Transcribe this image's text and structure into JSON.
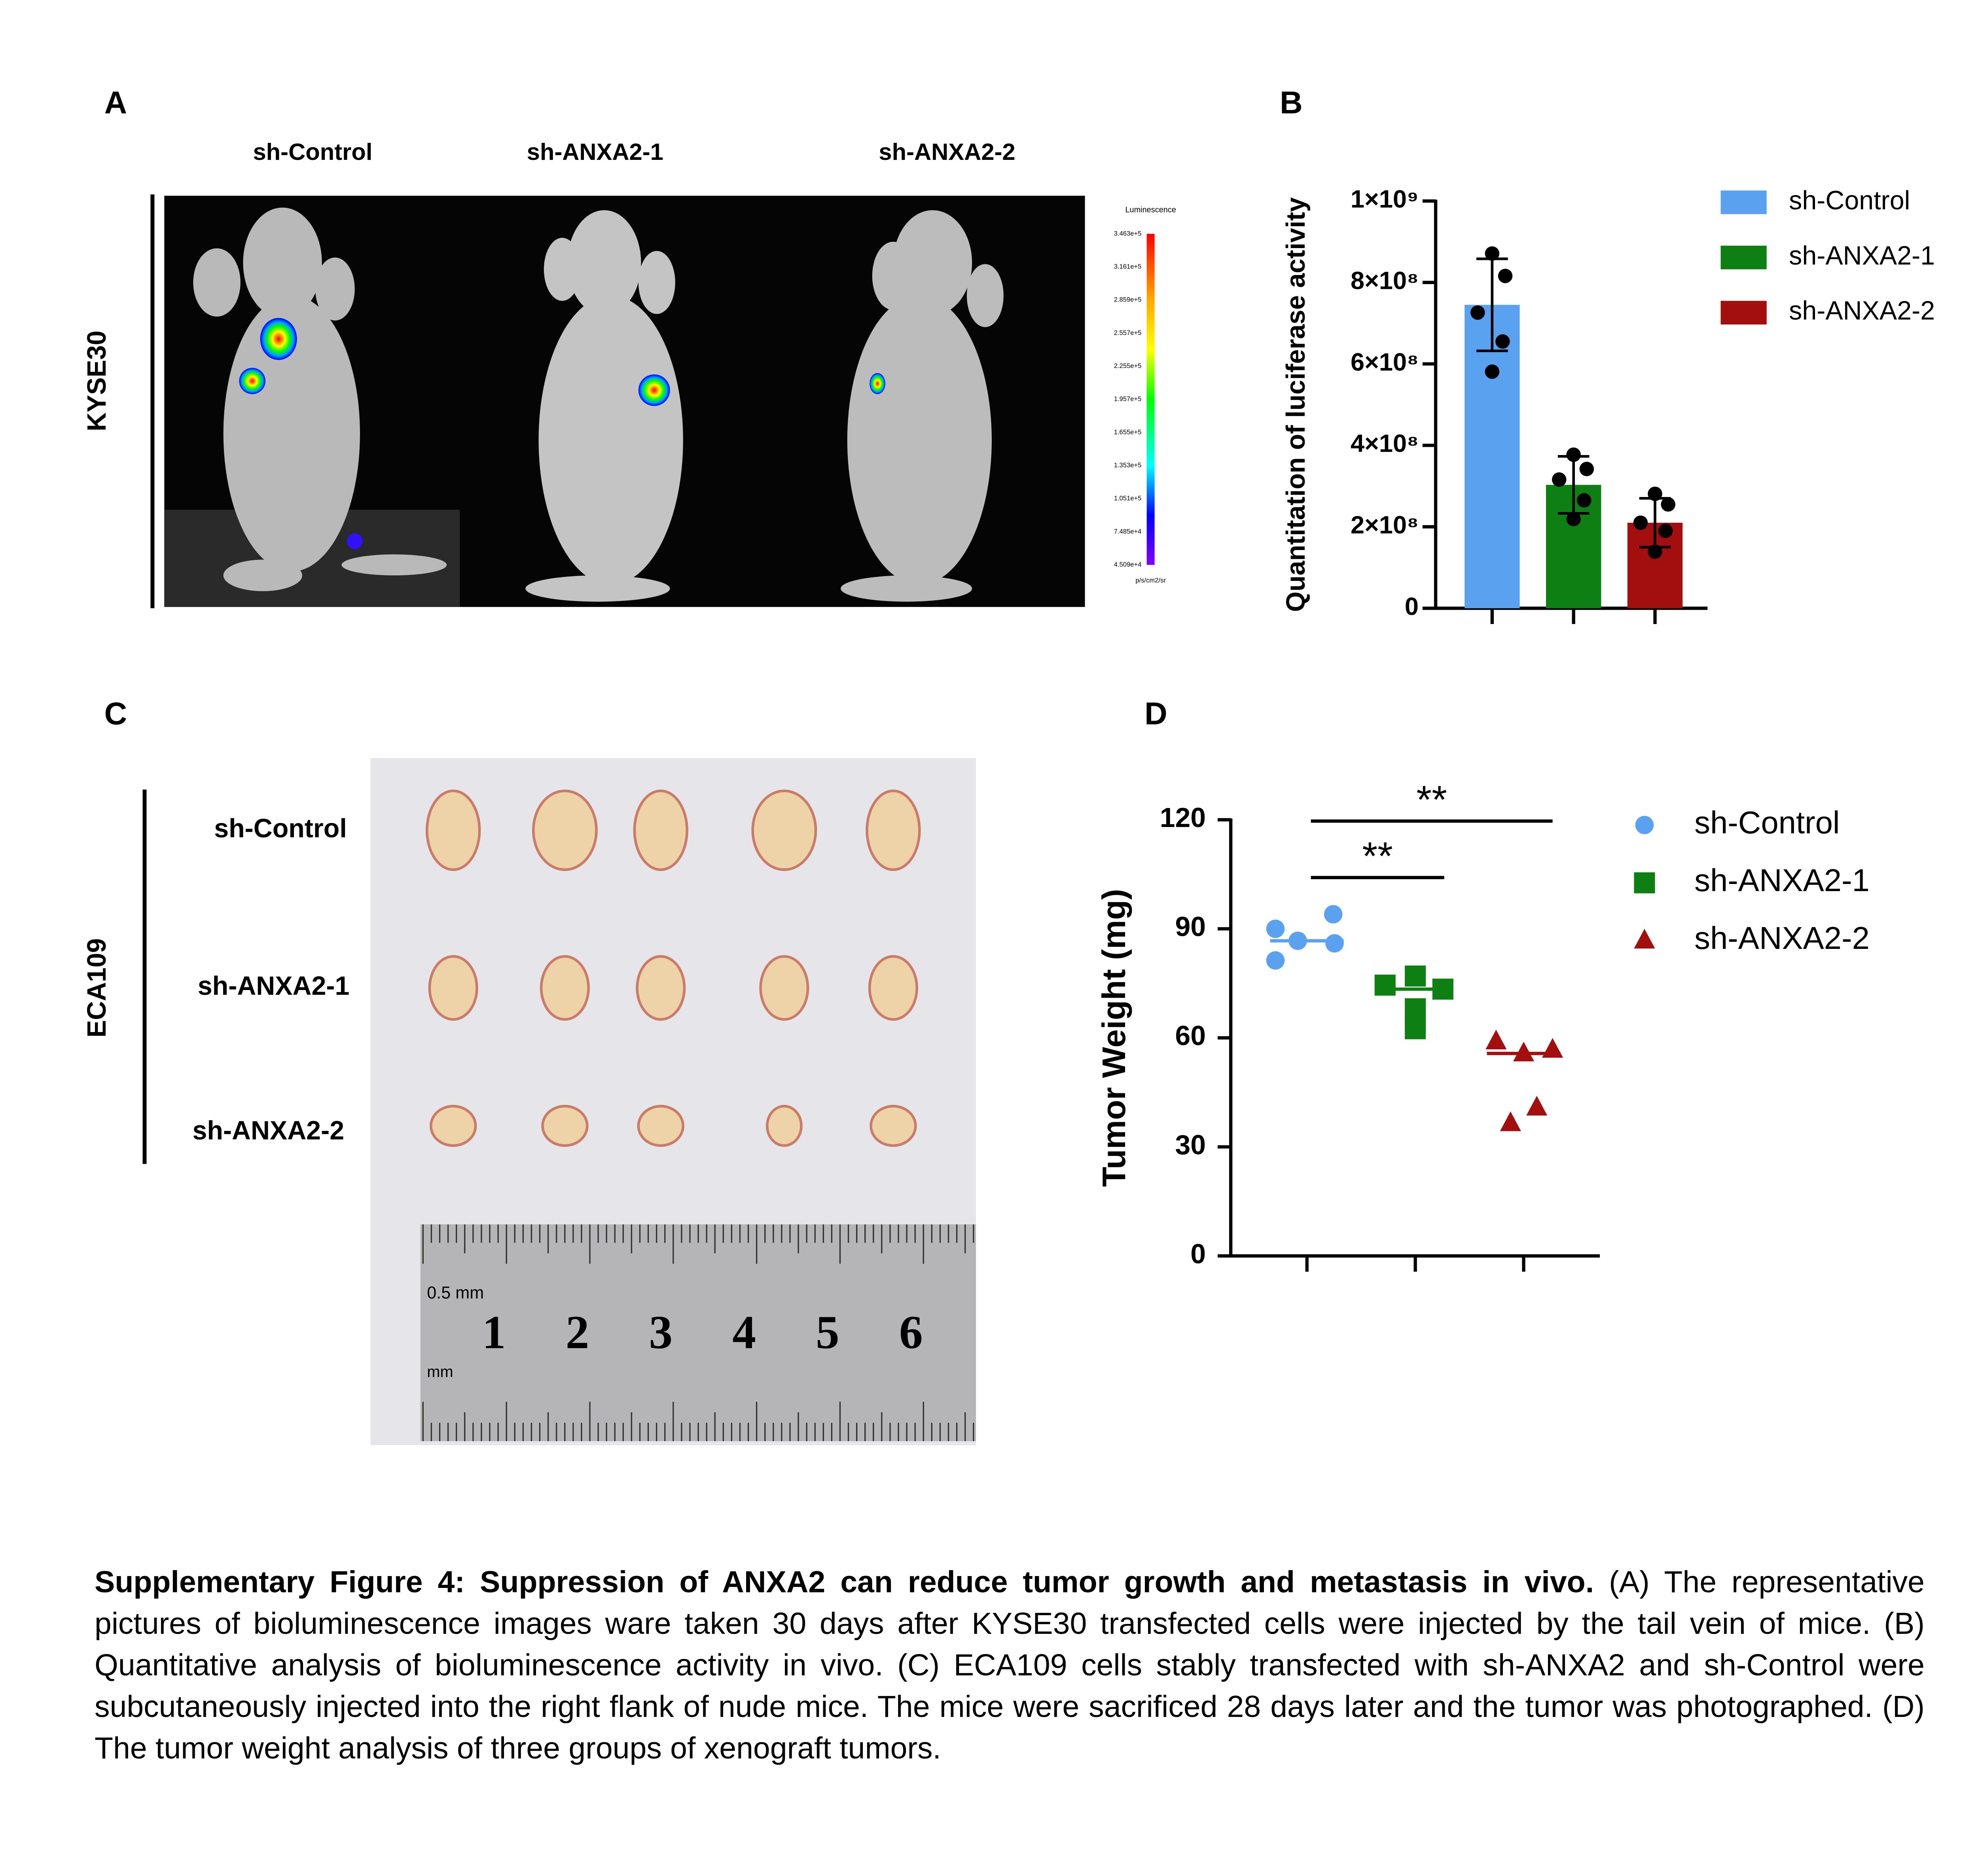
{
  "panel_labels": [
    "A",
    "B",
    "C",
    "D"
  ],
  "panel_a": {
    "groups": [
      "sh-Control",
      "sh-ANXA2-1",
      "sh-ANXA2-2"
    ],
    "cell_line": "KYSE30",
    "colorbar": {
      "title": "Luminescence",
      "labels": [
        "3.463e+5",
        "3.161e+5",
        "2.859e+5",
        "2.557e+5",
        "2.255e+5",
        "1.957e+5",
        "1.655e+5",
        "1.353e+5",
        "1.051e+5",
        "7.485e+4",
        "4.509e+4"
      ],
      "unit": "p/s/cm2/sr"
    }
  },
  "panel_c": {
    "groups": [
      "sh-Control",
      "sh-ANXA2-1",
      "sh-ANXA2-2"
    ],
    "cell_line": "ECA109",
    "ruler": {
      "numbers": [
        "1",
        "2",
        "3",
        "4",
        "5",
        "6"
      ],
      "upper_label": "0.5 mm",
      "lower_label": "mm"
    }
  },
  "chart_data": [
    {
      "type": "bar",
      "y_label": "Quantitation of luciferase activity",
      "ylim": [
        0,
        1000000000
      ],
      "yticks": [
        0,
        {
          "value": 200000000,
          "label": "2×10⁸"
        },
        {
          "value": 400000000,
          "label": "4×10⁸"
        },
        {
          "value": 600000000,
          "label": "6×10⁸"
        },
        {
          "value": 800000000,
          "label": "8×10⁸"
        },
        {
          "value": 1000000000,
          "label": "1×10⁹"
        }
      ],
      "legend": "upper right",
      "series": [
        {
          "name": "sh-Control",
          "color": "#5aa2f0",
          "values": [
            745000000
          ],
          "errors": [
            113000000
          ],
          "points": [
            871000000,
            816000000,
            726000000,
            655000000,
            581000000
          ]
        },
        {
          "name": "sh-ANXA2-1",
          "color": "#0e7f12",
          "values": [
            303000000
          ],
          "errors": [
            70000000
          ],
          "points": [
            377000000,
            342000000,
            316000000,
            265000000,
            219000000
          ]
        },
        {
          "name": "sh-ANXA2-2",
          "color": "#a30e0e",
          "values": [
            210000000
          ],
          "errors": [
            60000000
          ],
          "points": [
            281000000,
            255000000,
            210000000,
            190000000,
            139000000
          ]
        }
      ]
    },
    {
      "type": "scatter",
      "y_label": "Tumor Weight (mg)",
      "ylim": [
        0,
        120
      ],
      "yticks": [
        0,
        30,
        60,
        90,
        120
      ],
      "legend": "upper right",
      "series": [
        {
          "name": "sh-Control",
          "color": "#5aa2f0",
          "marker": "circle",
          "values": [
            90,
            94,
            81.3,
            86.7,
            86
          ],
          "median": 86.7
        },
        {
          "name": "sh-ANXA2-1",
          "color": "#0e7f12",
          "marker": "square",
          "values": [
            77,
            74.5,
            73.4,
            68,
            62.5
          ],
          "median": 73.4
        },
        {
          "name": "sh-ANXA2-2",
          "color": "#a30e0e",
          "marker": "triangle",
          "values": [
            59,
            55.7,
            56.7,
            36.5,
            40.8
          ],
          "median": 55.7
        }
      ],
      "annotations": [
        {
          "text": "**",
          "from": "sh-Control",
          "to": "sh-ANXA2-2"
        },
        {
          "text": "**",
          "from": "sh-Control",
          "to": "sh-ANXA2-1"
        }
      ]
    }
  ],
  "caption": {
    "title": "Supplementary Figure 4: Suppression of ANXA2 can reduce tumor growth and metastasis in vivo.",
    "text": "(A) The representative pictures of bioluminescence images ware taken 30 days after KYSE30 transfected cells were injected by the tail vein of mice.  (B) Quantitative analysis of bioluminescence activity in vivo. (C) ECA109 cells stably transfected with sh-ANXA2 and sh-Control were subcutaneously injected into the right flank of nude mice. The mice were sacrificed 28 days later and the tumor was photographed. (D) The tumor weight analysis of three groups of xenograft tumors."
  }
}
